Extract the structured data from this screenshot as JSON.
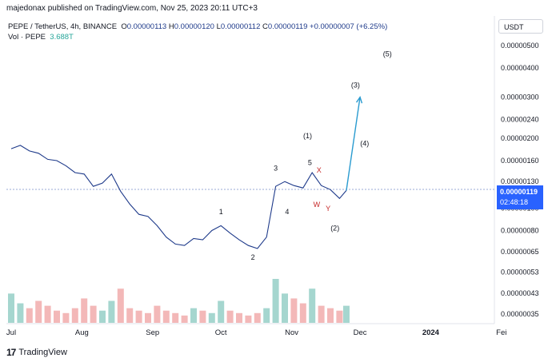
{
  "publisher_line": "majedonax published on TradingView.com, Nov 25, 2023 20:11 UTC+3",
  "legend": {
    "symbol": "PEPE / TetherUS, 4h, BINANCE",
    "o_label": "O",
    "o": "0.00000113",
    "h_label": "H",
    "h": "0.00000120",
    "l_label": "L",
    "l": "0.00000112",
    "c_label": "C",
    "c": "0.00000119",
    "change": "+0.00000007 (+6.25%)",
    "vol_label": "Vol · PEPE",
    "vol_value": "3.688T"
  },
  "quote_currency": "USDT",
  "current_price": "0.00000119",
  "countdown": "02:48:18",
  "footer_brand": "TradingView",
  "colors": {
    "price_line": "#1e3a8a",
    "projection": "#2a9bd0",
    "wxy_labels": "#c62828",
    "volume_up": "#a5d6cf",
    "volume_down": "#f3b8b8",
    "price_tag": "#2962ff"
  },
  "chart_data": {
    "type": "line",
    "price_scale": "log",
    "y_ticks": [
      "0.00000500",
      "0.00000400",
      "0.00000300",
      "0.00000240",
      "0.00000200",
      "0.00000160",
      "0.00000130",
      "0.00000100",
      "0.00000080",
      "0.00000065",
      "0.00000053",
      "0.00000043",
      "0.00000035"
    ],
    "x_ticks": [
      "Jul",
      "Aug",
      "Sep",
      "Oct",
      "Nov",
      "Dec",
      "2024",
      "Fei"
    ],
    "series": [
      {
        "x": [
          "2023-07-01",
          "2023-07-05",
          "2023-07-09",
          "2023-07-13",
          "2023-07-17",
          "2023-07-21",
          "2023-07-25",
          "2023-07-29",
          "2023-08-02",
          "2023-08-06",
          "2023-08-10",
          "2023-08-14",
          "2023-08-18",
          "2023-08-22",
          "2023-08-26",
          "2023-08-30",
          "2023-09-03",
          "2023-09-07",
          "2023-09-11",
          "2023-09-15",
          "2023-09-19",
          "2023-09-23",
          "2023-09-27",
          "2023-10-01",
          "2023-10-05",
          "2023-10-09",
          "2023-10-13",
          "2023-10-17",
          "2023-10-21",
          "2023-10-25",
          "2023-10-29",
          "2023-11-02",
          "2023-11-06",
          "2023-11-10",
          "2023-11-14",
          "2023-11-18",
          "2023-11-22",
          "2023-11-25"
        ],
        "values": [
          1.8e-06,
          1.86e-06,
          1.76e-06,
          1.72e-06,
          1.62e-06,
          1.6e-06,
          1.52e-06,
          1.42e-06,
          1.4e-06,
          1.24e-06,
          1.28e-06,
          1.4e-06,
          1.18e-06,
          1.04e-06,
          9.4e-07,
          9.2e-07,
          8.4e-07,
          7.5e-07,
          7e-07,
          6.9e-07,
          7.4e-07,
          7.3e-07,
          8e-07,
          8.4e-07,
          7.8e-07,
          7.3e-07,
          6.9e-07,
          6.7e-07,
          7.5e-07,
          1.24e-06,
          1.3e-06,
          1.25e-06,
          1.22e-06,
          1.42e-06,
          1.25e-06,
          1.2e-06,
          1.1e-06,
          1.19e-06
        ]
      }
    ],
    "projection": {
      "x": [
        "2023-11-25",
        "2023-12-01"
      ],
      "values": [
        1.19e-06,
        3e-06
      ]
    },
    "annotations": [
      {
        "text": "1",
        "x": "2023-10-01",
        "y": 9.4e-07
      },
      {
        "text": "2",
        "x": "2023-10-15",
        "y": 6e-07
      },
      {
        "text": "3",
        "x": "2023-10-25",
        "y": 1.45e-06
      },
      {
        "text": "4",
        "x": "2023-10-30",
        "y": 9.4e-07
      },
      {
        "text": "5",
        "x": "2023-11-09",
        "y": 1.53e-06
      },
      {
        "text": "(1)",
        "x": "2023-11-08",
        "y": 2e-06
      },
      {
        "text": "(2)",
        "x": "2023-11-20",
        "y": 8e-07
      },
      {
        "text": "(3)",
        "x": "2023-11-29",
        "y": 3.3e-06
      },
      {
        "text": "(4)",
        "x": "2023-12-03",
        "y": 1.85e-06
      },
      {
        "text": "(5)",
        "x": "2023-12-13",
        "y": 4.5e-06
      },
      {
        "text": "X",
        "x": "2023-11-13",
        "y": 1.42e-06
      },
      {
        "text": "W",
        "x": "2023-11-12",
        "y": 1.01e-06
      },
      {
        "text": "Y",
        "x": "2023-11-17",
        "y": 9.7e-07
      }
    ],
    "volume": [
      12,
      8,
      6,
      9,
      7,
      5,
      4,
      6,
      10,
      7,
      5,
      9,
      14,
      6,
      5,
      4,
      7,
      5,
      4,
      3,
      6,
      5,
      4,
      9,
      5,
      4,
      3,
      4,
      6,
      18,
      12,
      10,
      8,
      14,
      7,
      6,
      5,
      7
    ]
  }
}
